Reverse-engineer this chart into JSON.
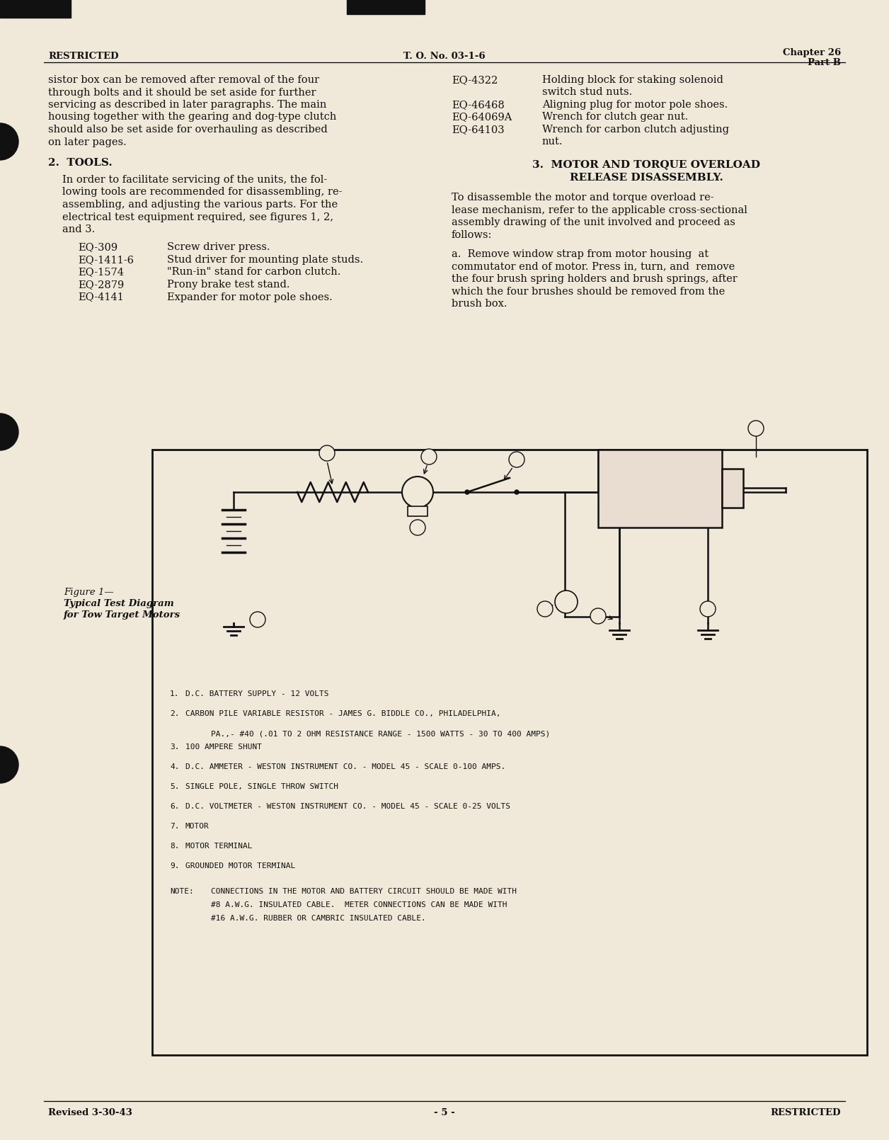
{
  "bg_color": "#f0e8d8",
  "header_left": "RESTRICTED",
  "header_center": "T. O. No. 03-1-6",
  "header_right_line1": "Chapter 26",
  "header_right_line2": "Part B",
  "footer_left": "Revised 3-30-43",
  "footer_center": "- 5 -",
  "footer_right": "RESTRICTED",
  "left_col_text": [
    "sistor box can be removed after removal of the four",
    "through bolts and it should be set aside for further",
    "servicing as described in later paragraphs. The main",
    "housing together with the gearing and dog-type clutch",
    "should also be set aside for overhauling as described",
    "on later pages."
  ],
  "section2_title": "2.  TOOLS.",
  "section2_body": [
    "In order to facilitate servicing of the units, the fol-",
    "lowing tools are recommended for disassembling, re-",
    "assembling, and adjusting the various parts. For the",
    "electrical test equipment required, see figures 1, 2,",
    "and 3."
  ],
  "tools_list": [
    [
      "EQ-309",
      "Screw driver press."
    ],
    [
      "EQ-1411-6",
      "Stud driver for mounting plate studs."
    ],
    [
      "EQ-1574",
      "\"Run-in\" stand for carbon clutch."
    ],
    [
      "EQ-2879",
      "Prony brake test stand."
    ],
    [
      "EQ-4141",
      "Expander for motor pole shoes."
    ]
  ],
  "right_col_eq": [
    [
      "EQ-4322",
      "Holding block for staking solenoid",
      "switch stud nuts."
    ],
    [
      "EQ-46468",
      "Aligning plug for motor pole shoes.",
      ""
    ],
    [
      "EQ-64069A",
      "Wrench for clutch gear nut.",
      ""
    ],
    [
      "EQ-64103",
      "Wrench for carbon clutch adjusting",
      "nut."
    ]
  ],
  "section3_title": "3.  MOTOR AND TORQUE OVERLOAD",
  "section3_title2": "RELEASE DISASSEMBLY.",
  "section3_body": [
    "To disassemble the motor and torque overload re-",
    "lease mechanism, refer to the applicable cross-sectional",
    "assembly drawing of the unit involved and proceed as",
    "follows:"
  ],
  "section3_para_a": [
    "a.  Remove window strap from motor housing  at",
    "commutator end of motor. Press in, turn, and  remove",
    "the four brush spring holders and brush springs, after",
    "which the four brushes should be removed from the",
    "brush box."
  ],
  "figure_caption_line1": "Figure 1—",
  "figure_caption_line2": "Typical Test Diagram",
  "figure_caption_line3": "for Tow Target Motors",
  "diagram_legend": [
    [
      "1.",
      "D.C. BATTERY SUPPLY - 12 VOLTS"
    ],
    [
      "2.",
      "CARBON PILE VARIABLE RESISTOR - JAMES G. BIDDLE CO., PHILADELPHIA,"
    ],
    [
      "",
      "PA.,- #40 (.01 TO 2 OHM RESISTANCE RANGE - 1500 WATTS - 30 TO 400 AMPS)"
    ],
    [
      "3.",
      "100 AMPERE SHUNT"
    ],
    [
      "4.",
      "D.C. AMMETER - WESTON INSTRUMENT CO. - MODEL 45 - SCALE 0-100 AMPS."
    ],
    [
      "5.",
      "SINGLE POLE, SINGLE THROW SWITCH"
    ],
    [
      "6.",
      "D.C. VOLTMETER - WESTON INSTRUMENT CO. - MODEL 45 - SCALE 0-25 VOLTS"
    ],
    [
      "7.",
      "MOTOR"
    ],
    [
      "8.",
      "MOTOR TERMINAL"
    ],
    [
      "9.",
      "GROUNDED MOTOR TERMINAL"
    ],
    [
      "NOTE:",
      "CONNECTIONS IN THE MOTOR AND BATTERY CIRCUIT SHOULD BE MADE WITH"
    ],
    [
      "",
      "#8 A.W.G. INSULATED CABLE.  METER CONNECTIONS CAN BE MADE WITH"
    ],
    [
      "",
      "#16 A.W.G. RUBBER OR CAMBRIC INSULATED CABLE."
    ]
  ]
}
